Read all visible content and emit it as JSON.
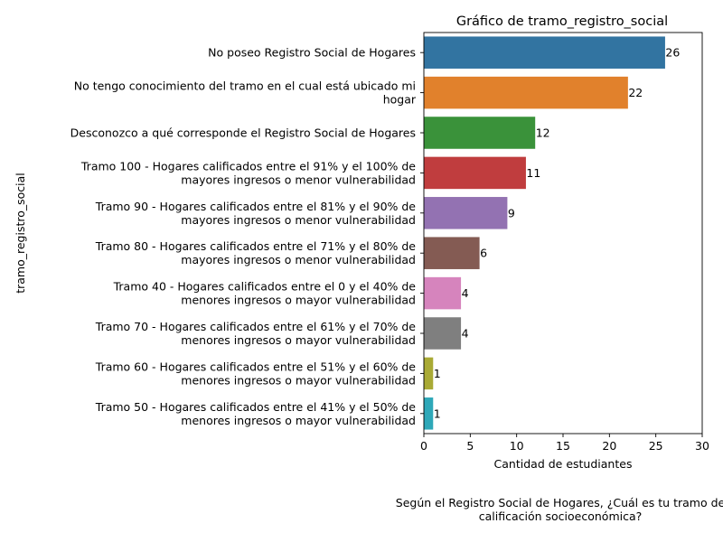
{
  "chart_data": {
    "type": "bar",
    "orientation": "horizontal",
    "title": "Gráfico de tramo_registro_social",
    "xlabel": "Cantidad de estudiantes",
    "ylabel": "tramo_registro_social",
    "xlim": [
      0,
      30
    ],
    "xticks": [
      0,
      5,
      10,
      15,
      20,
      25,
      30
    ],
    "grid": false,
    "categories": [
      [
        "No poseo Registro Social de Hogares"
      ],
      [
        "No tengo conocimiento del tramo en el cual está ubicado mi",
        "hogar"
      ],
      [
        "Desconozco a qué corresponde el Registro Social de Hogares"
      ],
      [
        "Tramo 100 - Hogares calificados entre el 91% y el 100% de",
        "mayores ingresos o menor vulnerabilidad"
      ],
      [
        "Tramo 90 - Hogares calificados entre el 81% y el 90% de",
        "mayores ingresos o menor vulnerabilidad"
      ],
      [
        "Tramo 80 - Hogares calificados entre el 71% y el 80% de",
        "mayores ingresos o menor vulnerabilidad"
      ],
      [
        "Tramo 40 - Hogares calificados entre el 0 y el 40% de",
        "menores ingresos o mayor vulnerabilidad"
      ],
      [
        "Tramo 70 - Hogares calificados entre el 61% y el 70% de",
        "menores ingresos o mayor vulnerabilidad"
      ],
      [
        "Tramo 60 - Hogares calificados entre el 51% y el 60% de",
        "menores ingresos o mayor vulnerabilidad"
      ],
      [
        "Tramo 50 - Hogares calificados entre el 41% y el 50% de",
        "menores ingresos o mayor vulnerabilidad"
      ]
    ],
    "values": [
      26,
      22,
      12,
      11,
      9,
      6,
      4,
      4,
      1,
      1
    ],
    "colors": [
      "#3274a1",
      "#e1812c",
      "#3a923a",
      "#c03d3e",
      "#9372b2",
      "#845b53",
      "#d684bd",
      "#7f7f7f",
      "#a9aa35",
      "#2ea8b8"
    ],
    "caption": [
      "Según el Registro Social de Hogares, ¿Cuál es tu tramo de",
      "calificación socioeconómica?"
    ]
  }
}
